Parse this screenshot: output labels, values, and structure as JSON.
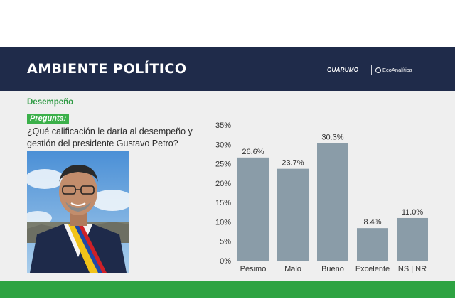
{
  "header": {
    "title": "AMBIENTE POLÍTICO",
    "brand_1": "GUARUMO",
    "brand_2": "EcoAnalítica"
  },
  "section": "Desempeño",
  "pregunta_label": "Pregunta:",
  "question": "¿Qué calificación le daría al desempeño y gestión del presidente Gustavo Petro?",
  "photo": {
    "icon": "president-portrait-photo"
  },
  "colors": {
    "header_bg": "#1f2b4a",
    "accent_green": "#2ea342",
    "bar_fill": "#8a9ca8"
  },
  "chart_data": {
    "type": "bar",
    "categories": [
      "Pésimo",
      "Malo",
      "Bueno",
      "Excelente",
      "NS | NR"
    ],
    "values": [
      26.6,
      23.7,
      30.3,
      8.4,
      11.0
    ],
    "value_labels": [
      "26.6%",
      "23.7%",
      "30.3%",
      "8.4%",
      "11.0%"
    ],
    "yticks": [
      "0%",
      "5%",
      "10%",
      "15%",
      "20%",
      "25%",
      "30%",
      "35%"
    ],
    "ylim": [
      0,
      35
    ],
    "grid": false,
    "title": "",
    "xlabel": "",
    "ylabel": ""
  }
}
